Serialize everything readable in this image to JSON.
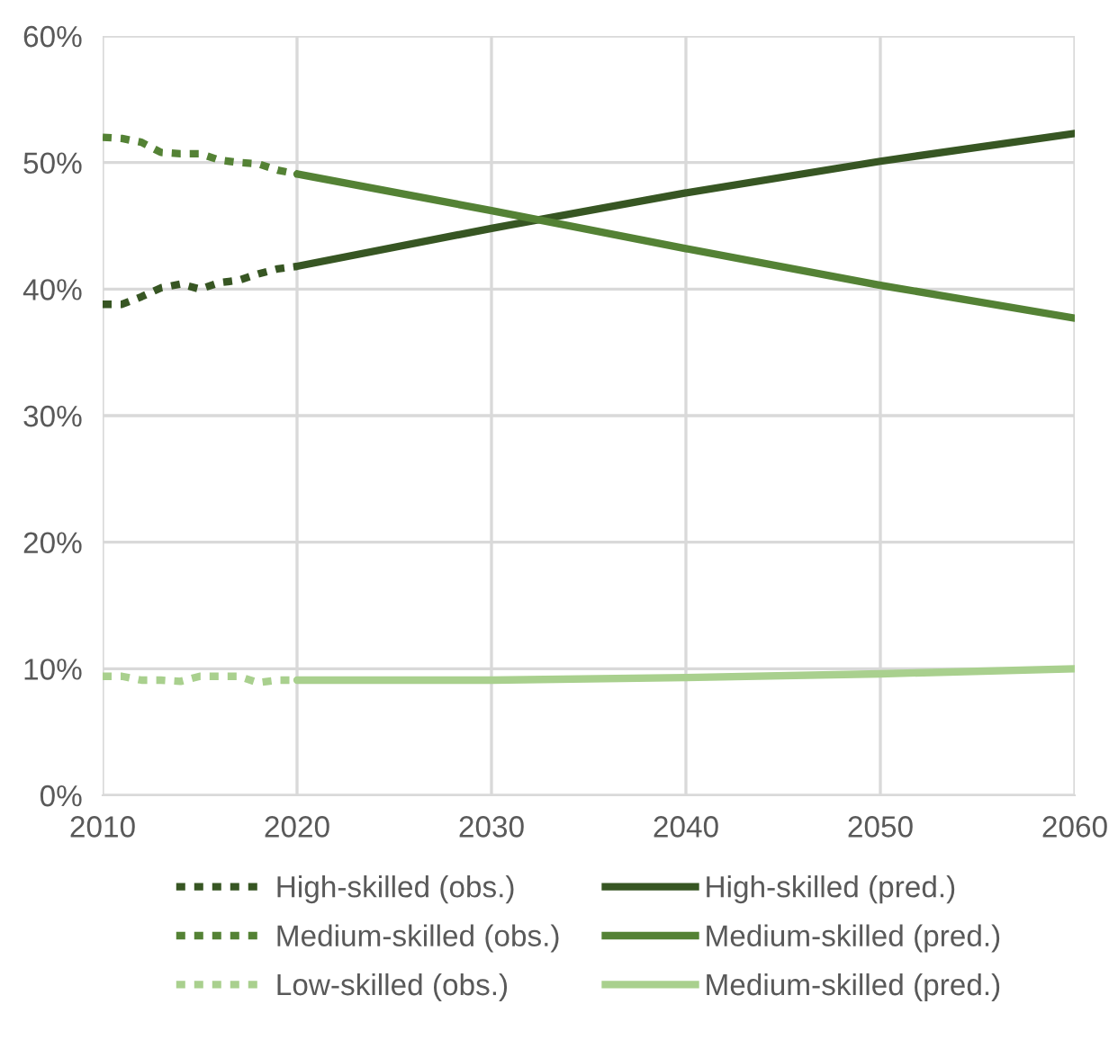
{
  "chart_data": {
    "type": "line",
    "xlim": [
      2010,
      2060
    ],
    "xticks": [
      2010,
      2020,
      2030,
      2040,
      2050,
      2060
    ],
    "ylim": [
      0,
      60
    ],
    "yticks": [
      {
        "value": 0,
        "label": "0%"
      },
      {
        "value": 10,
        "label": "10%"
      },
      {
        "value": 20,
        "label": "20%"
      },
      {
        "value": 30,
        "label": "30%"
      },
      {
        "value": 40,
        "label": "40%"
      },
      {
        "value": 50,
        "label": "50%"
      },
      {
        "value": 60,
        "label": "60%"
      }
    ],
    "grid": true,
    "legend": "bottom",
    "marker": "none",
    "series": [
      {
        "name": "High-skilled (obs.)",
        "color": "#375623",
        "line_style": "dotted",
        "x": [
          2010,
          2011,
          2012,
          2013,
          2014,
          2015,
          2016,
          2017,
          2018,
          2019,
          2020
        ],
        "values": [
          38.8,
          38.8,
          39.4,
          40.1,
          40.4,
          40.0,
          40.5,
          40.7,
          41.2,
          41.6,
          41.8
        ]
      },
      {
        "name": "Medium-skilled (obs.)",
        "color": "#548235",
        "line_style": "dotted",
        "x": [
          2010,
          2011,
          2012,
          2013,
          2014,
          2015,
          2016,
          2017,
          2018,
          2019,
          2020
        ],
        "values": [
          52.0,
          51.9,
          51.6,
          50.8,
          50.7,
          50.7,
          50.2,
          50.0,
          49.9,
          49.4,
          49.1
        ]
      },
      {
        "name": "Low-skilled (obs.)",
        "color": "#a9d08e",
        "line_style": "dotted",
        "x": [
          2010,
          2011,
          2012,
          2013,
          2014,
          2015,
          2016,
          2017,
          2018,
          2019,
          2020
        ],
        "values": [
          9.4,
          9.4,
          9.1,
          9.1,
          9.0,
          9.4,
          9.4,
          9.4,
          8.9,
          9.1,
          9.1
        ]
      },
      {
        "name": "High-skilled (pred.)",
        "color": "#375623",
        "line_style": "solid",
        "x": [
          2020,
          2030,
          2040,
          2050,
          2060
        ],
        "values": [
          41.8,
          44.8,
          47.6,
          50.1,
          52.3
        ]
      },
      {
        "name": "Medium-skilled (pred.)",
        "color": "#548235",
        "line_style": "solid",
        "x": [
          2020,
          2030,
          2040,
          2050,
          2060
        ],
        "values": [
          49.1,
          46.2,
          43.2,
          40.3,
          37.7
        ]
      },
      {
        "name": "Medium-skilled (pred.)",
        "color": "#a9d08e",
        "line_style": "solid",
        "x": [
          2020,
          2030,
          2040,
          2050,
          2060
        ],
        "values": [
          9.1,
          9.1,
          9.3,
          9.6,
          10.0
        ]
      }
    ]
  }
}
